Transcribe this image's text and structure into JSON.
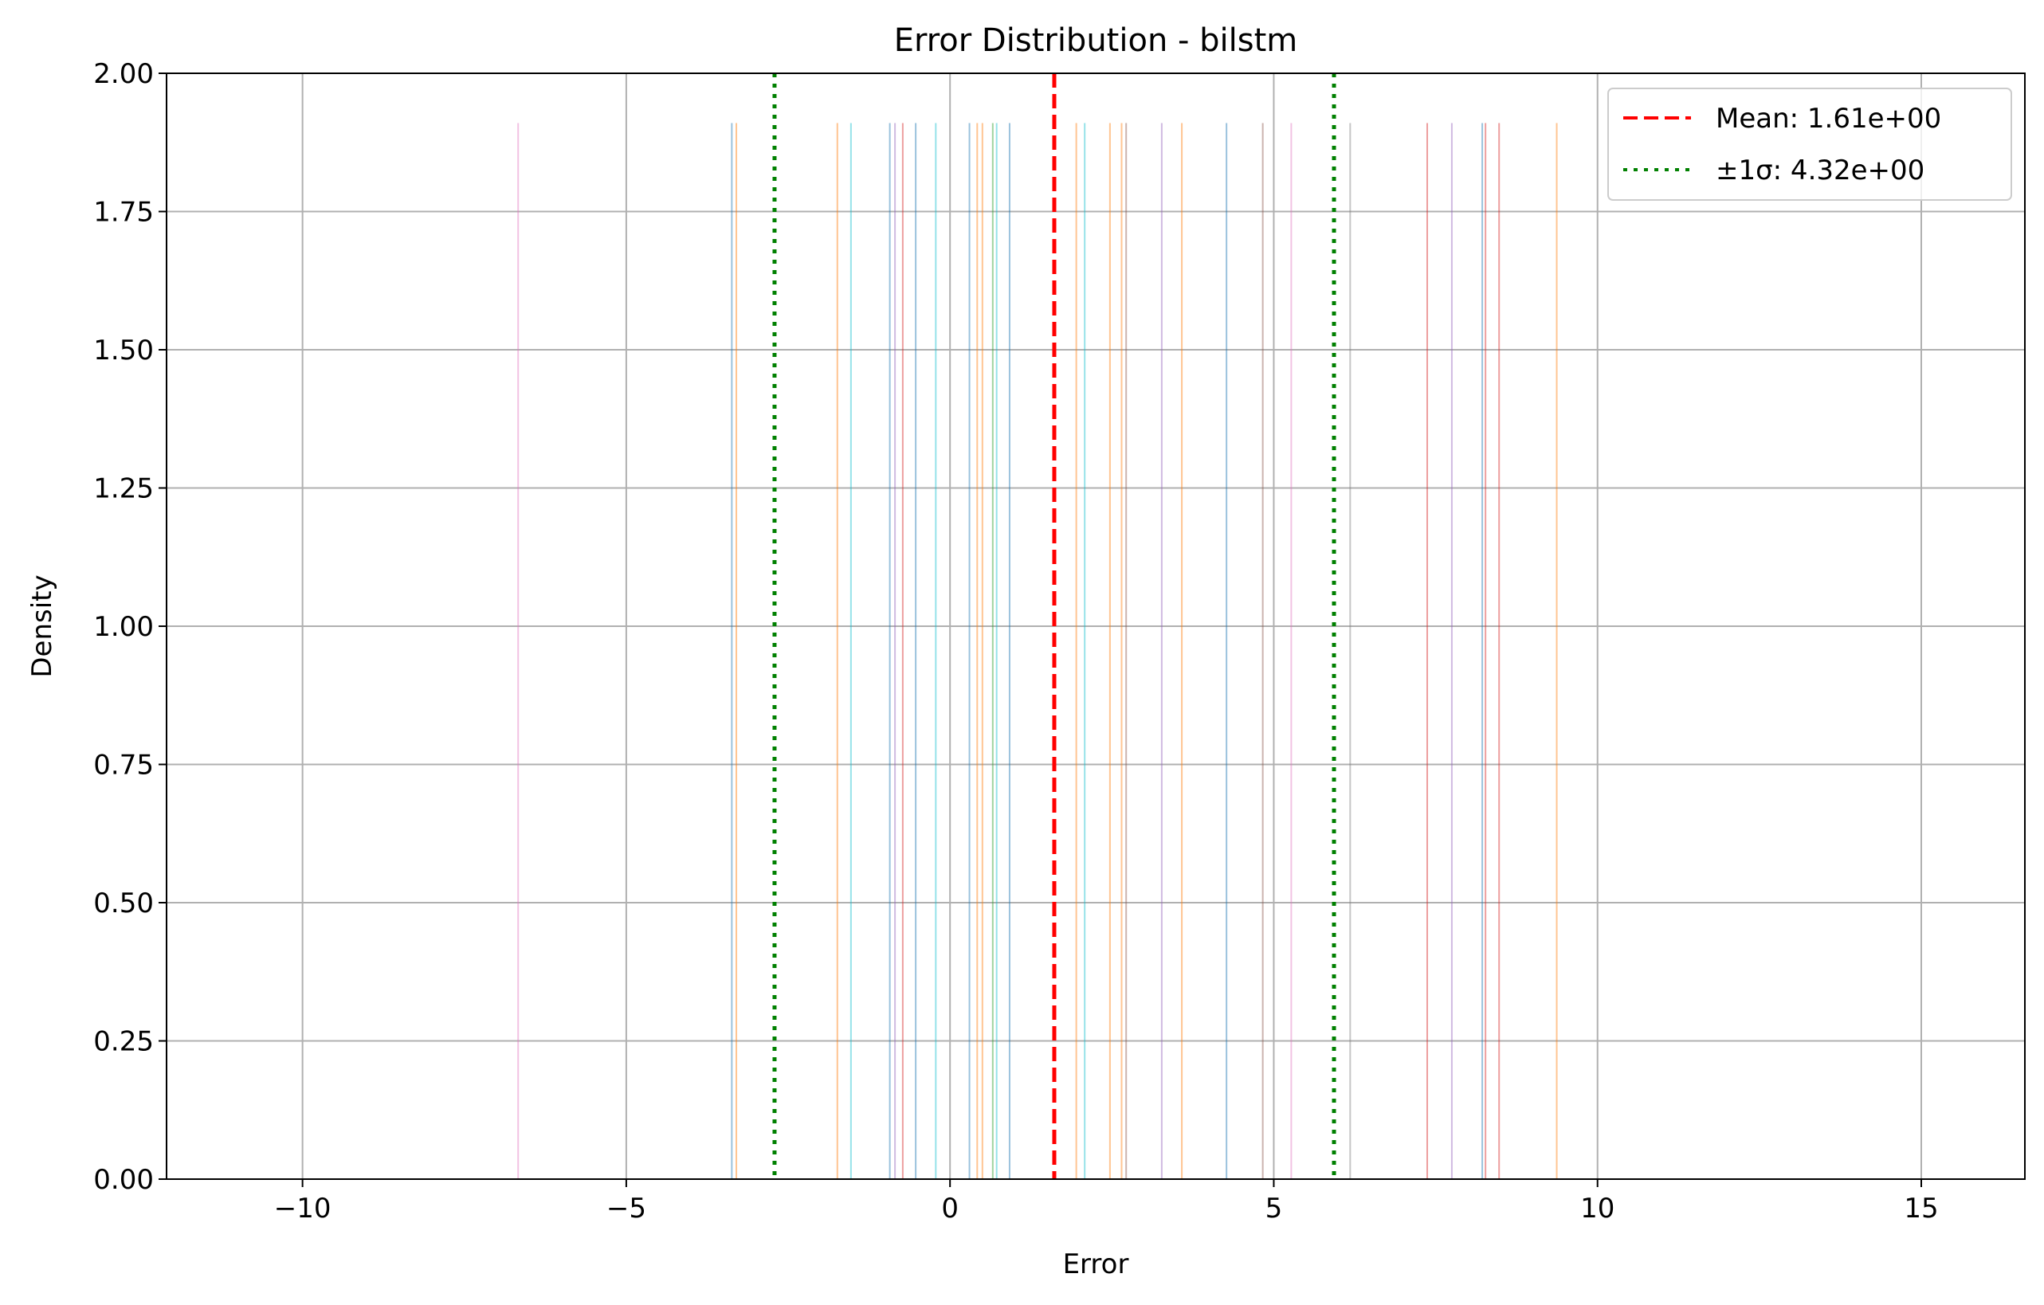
{
  "chart_data": {
    "type": "histogram",
    "title": "Error Distribution - bilstm",
    "xlabel": "Error",
    "ylabel": "Density",
    "xlim": [
      -12.1,
      16.6
    ],
    "ylim": [
      0,
      2.0
    ],
    "x_ticks": [
      {
        "value": -10,
        "label": "−10"
      },
      {
        "value": -5,
        "label": "−5"
      },
      {
        "value": 0,
        "label": "0"
      },
      {
        "value": 5,
        "label": "5"
      },
      {
        "value": 10,
        "label": "10"
      },
      {
        "value": 15,
        "label": "15"
      }
    ],
    "y_ticks": [
      {
        "value": 0.0,
        "label": "0.00"
      },
      {
        "value": 0.25,
        "label": "0.25"
      },
      {
        "value": 0.5,
        "label": "0.50"
      },
      {
        "value": 0.75,
        "label": "0.75"
      },
      {
        "value": 1.0,
        "label": "1.00"
      },
      {
        "value": 1.25,
        "label": "1.25"
      },
      {
        "value": 1.5,
        "label": "1.50"
      },
      {
        "value": 1.75,
        "label": "1.75"
      },
      {
        "value": 2.0,
        "label": "2.00"
      }
    ],
    "grid": true,
    "legend_position": "top-right",
    "bar_height": 1.91,
    "bars": [
      {
        "x": -6.67,
        "color": "#e377c2"
      },
      {
        "x": -3.37,
        "color": "#1f77b4"
      },
      {
        "x": -3.3,
        "color": "#ff7f0e"
      },
      {
        "x": -1.74,
        "color": "#ff7f0e"
      },
      {
        "x": -1.53,
        "color": "#17becf"
      },
      {
        "x": -0.93,
        "color": "#1f77b4"
      },
      {
        "x": -0.85,
        "color": "#9467bd"
      },
      {
        "x": -0.73,
        "color": "#d62728"
      },
      {
        "x": -0.53,
        "color": "#1f77b4"
      },
      {
        "x": -0.22,
        "color": "#17becf"
      },
      {
        "x": 0.3,
        "color": "#1f77b4"
      },
      {
        "x": 0.42,
        "color": "#ff7f0e"
      },
      {
        "x": 0.5,
        "color": "#ff7f0e"
      },
      {
        "x": 0.66,
        "color": "#2ca02c"
      },
      {
        "x": 0.72,
        "color": "#17becf"
      },
      {
        "x": 0.92,
        "color": "#1f77b4"
      },
      {
        "x": 1.95,
        "color": "#ff7f0e"
      },
      {
        "x": 2.08,
        "color": "#17becf"
      },
      {
        "x": 2.47,
        "color": "#ff7f0e"
      },
      {
        "x": 2.65,
        "color": "#ff7f0e"
      },
      {
        "x": 2.72,
        "color": "#8c564b"
      },
      {
        "x": 3.27,
        "color": "#9467bd"
      },
      {
        "x": 3.58,
        "color": "#ff7f0e"
      },
      {
        "x": 4.27,
        "color": "#1f77b4"
      },
      {
        "x": 4.83,
        "color": "#8c564b"
      },
      {
        "x": 5.27,
        "color": "#e377c2"
      },
      {
        "x": 6.18,
        "color": "#7f7f7f"
      },
      {
        "x": 7.37,
        "color": "#d62728"
      },
      {
        "x": 7.75,
        "color": "#9467bd"
      },
      {
        "x": 8.22,
        "color": "#1f77b4"
      },
      {
        "x": 8.27,
        "color": "#d62728"
      },
      {
        "x": 8.48,
        "color": "#d62728"
      },
      {
        "x": 9.37,
        "color": "#ff7f0e"
      }
    ],
    "mean_line": {
      "value": 1.61,
      "color": "#ff0000",
      "style": "dashed"
    },
    "sigma_lines": {
      "values": [
        -2.71,
        5.93
      ],
      "color": "#008000",
      "style": "dotted"
    },
    "legend": [
      {
        "label": "Mean: 1.61e+00",
        "color": "#ff0000",
        "style": "dashed"
      },
      {
        "label": "±1σ: 4.32e+00",
        "color": "#008000",
        "style": "dotted"
      }
    ]
  }
}
